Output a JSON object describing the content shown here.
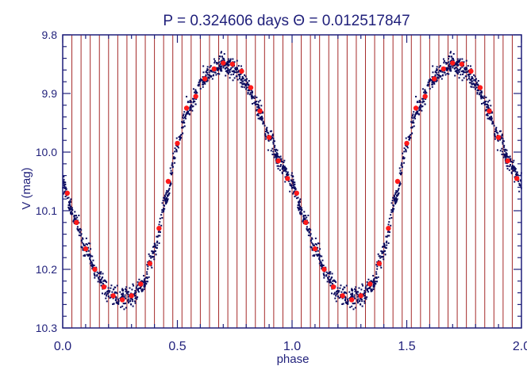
{
  "chart_data": {
    "type": "scatter",
    "title": "P = 0.324606 days   Θ = 0.012517847",
    "xlabel": "phase",
    "ylabel": "V (mag)",
    "xlim": [
      0.0,
      2.0
    ],
    "ylim": [
      9.8,
      10.3
    ],
    "y_inverted": true,
    "grid": false,
    "x_ticks": [
      0.0,
      0.5,
      1.0,
      1.5,
      2.0
    ],
    "x_tick_labels": [
      "0.0",
      "0.5",
      "1.0",
      "1.5",
      "2.0"
    ],
    "y_ticks": [
      9.8,
      9.9,
      10.0,
      10.1,
      10.2,
      10.3
    ],
    "y_tick_labels": [
      "9.8",
      "9.9",
      "10.0",
      "10.1",
      "10.2",
      "10.3"
    ],
    "bin_width": 0.04,
    "series": [
      {
        "kind": "observations",
        "color": "#0b0b5e",
        "points_per_cycle": 1100,
        "scatter_mag": 0.012,
        "light_curve_phase": [
          0.0,
          0.05,
          0.1,
          0.15,
          0.2,
          0.25,
          0.3,
          0.35,
          0.4,
          0.45,
          0.5,
          0.55,
          0.6,
          0.65,
          0.7,
          0.75,
          0.8,
          0.85,
          0.9,
          0.95,
          1.0
        ],
        "light_curve_mag": [
          10.055,
          10.11,
          10.165,
          10.21,
          10.24,
          10.252,
          10.248,
          10.225,
          10.17,
          10.08,
          9.985,
          9.925,
          9.885,
          9.858,
          9.848,
          9.858,
          9.885,
          9.925,
          9.975,
          10.02,
          10.055
        ]
      },
      {
        "kind": "binned_means",
        "color": "#ff1a1a",
        "phase": [
          0.02,
          0.06,
          0.1,
          0.14,
          0.18,
          0.22,
          0.26,
          0.3,
          0.34,
          0.38,
          0.42,
          0.46,
          0.5,
          0.54,
          0.58,
          0.62,
          0.66,
          0.7,
          0.74,
          0.78,
          0.82,
          0.86,
          0.9,
          0.94,
          0.98
        ],
        "mag": [
          10.07,
          10.12,
          10.165,
          10.2,
          10.23,
          10.245,
          10.252,
          10.245,
          10.225,
          10.19,
          10.13,
          10.05,
          9.985,
          9.925,
          9.905,
          9.875,
          9.858,
          9.848,
          9.85,
          9.862,
          9.89,
          9.93,
          9.975,
          10.015,
          10.045
        ]
      }
    ],
    "colors": {
      "axes": "#1f1f7a",
      "bin_lines": "#a52a2a",
      "points": "#0b0b5e",
      "binned_means": "#ff1a1a"
    }
  }
}
